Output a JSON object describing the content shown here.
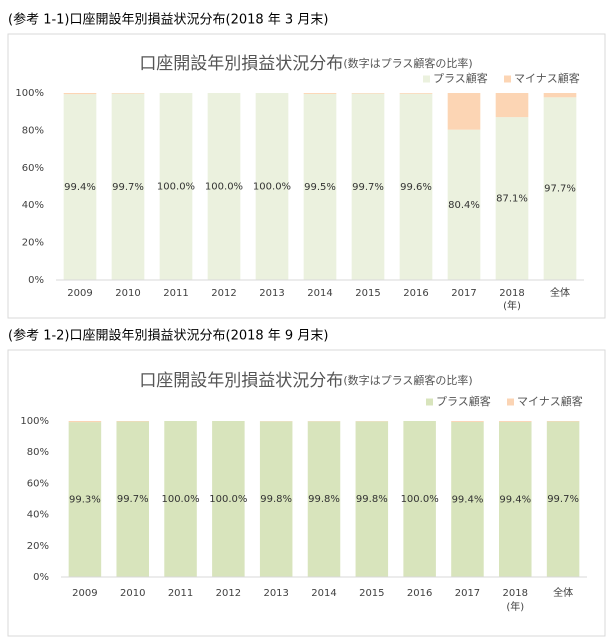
{
  "chart_data": [
    {
      "type": "stacked_bar",
      "caption": "(参考 1-1)口座開設年別損益状況分布(2018 年 3 月末)",
      "title": "口座開設年別損益状況分布",
      "subtitle": "(数字はプラス顧客の比率)",
      "categories": [
        "2009",
        "2010",
        "2011",
        "2012",
        "2013",
        "2014",
        "2015",
        "2016",
        "2017",
        "2018",
        "全体"
      ],
      "annotation": "(年)",
      "series": [
        {
          "name": "プラス顧客",
          "color": "#ebf1de",
          "values": [
            99.4,
            99.7,
            100.0,
            100.0,
            100.0,
            99.5,
            99.7,
            99.6,
            80.4,
            87.1,
            97.7
          ],
          "value_labels": [
            "99.4%",
            "99.7%",
            "100.0%",
            "100.0%",
            "100.0%",
            "99.5%",
            "99.7%",
            "99.6%",
            "80.4%",
            "87.1%",
            "97.7%"
          ]
        },
        {
          "name": "マイナス顧客",
          "color": "#fcd5b4",
          "values": [
            0.6,
            0.3,
            0,
            0,
            0,
            0.5,
            0.3,
            0.4,
            19.6,
            12.9,
            2.3
          ]
        }
      ],
      "ylim": [
        0,
        100
      ],
      "yticks": [
        {
          "value": 0,
          "label": "0%"
        },
        {
          "value": 20,
          "label": "20%"
        },
        {
          "value": 40,
          "label": "40%"
        },
        {
          "value": 60,
          "label": "60%"
        },
        {
          "value": 80,
          "label": "80%"
        },
        {
          "value": 100,
          "label": "100%"
        }
      ],
      "legend": "top-right"
    },
    {
      "type": "stacked_bar",
      "caption": "(参考 1-2)口座開設年別損益状況分布(2018 年 9 月末)",
      "title": "口座開設年別損益状況分布",
      "subtitle": "(数字はプラス顧客の比率)",
      "categories": [
        "2009",
        "2010",
        "2011",
        "2012",
        "2013",
        "2014",
        "2015",
        "2016",
        "2017",
        "2018",
        "全体"
      ],
      "annotation": "(年)",
      "series": [
        {
          "name": "プラス顧客",
          "color": "#d8e4bc",
          "values": [
            99.3,
            99.7,
            100.0,
            100.0,
            99.8,
            99.8,
            99.8,
            100.0,
            99.4,
            99.4,
            99.7
          ],
          "value_labels": [
            "99.3%",
            "99.7%",
            "100.0%",
            "100.0%",
            "99.8%",
            "99.8%",
            "99.8%",
            "100.0%",
            "99.4%",
            "99.4%",
            "99.7%"
          ]
        },
        {
          "name": "マイナス顧客",
          "color": "#fbd4b4",
          "values": [
            0.7,
            0.3,
            0,
            0,
            0.2,
            0.2,
            0.2,
            0,
            0.6,
            0.6,
            0.3
          ]
        }
      ],
      "ylim": [
        0,
        100
      ],
      "yticks": [
        {
          "value": 0,
          "label": "0%"
        },
        {
          "value": 20,
          "label": "20%"
        },
        {
          "value": 40,
          "label": "40%"
        },
        {
          "value": 60,
          "label": "60%"
        },
        {
          "value": 80,
          "label": "80%"
        },
        {
          "value": 100,
          "label": "100%"
        }
      ],
      "legend": "top-right"
    }
  ]
}
